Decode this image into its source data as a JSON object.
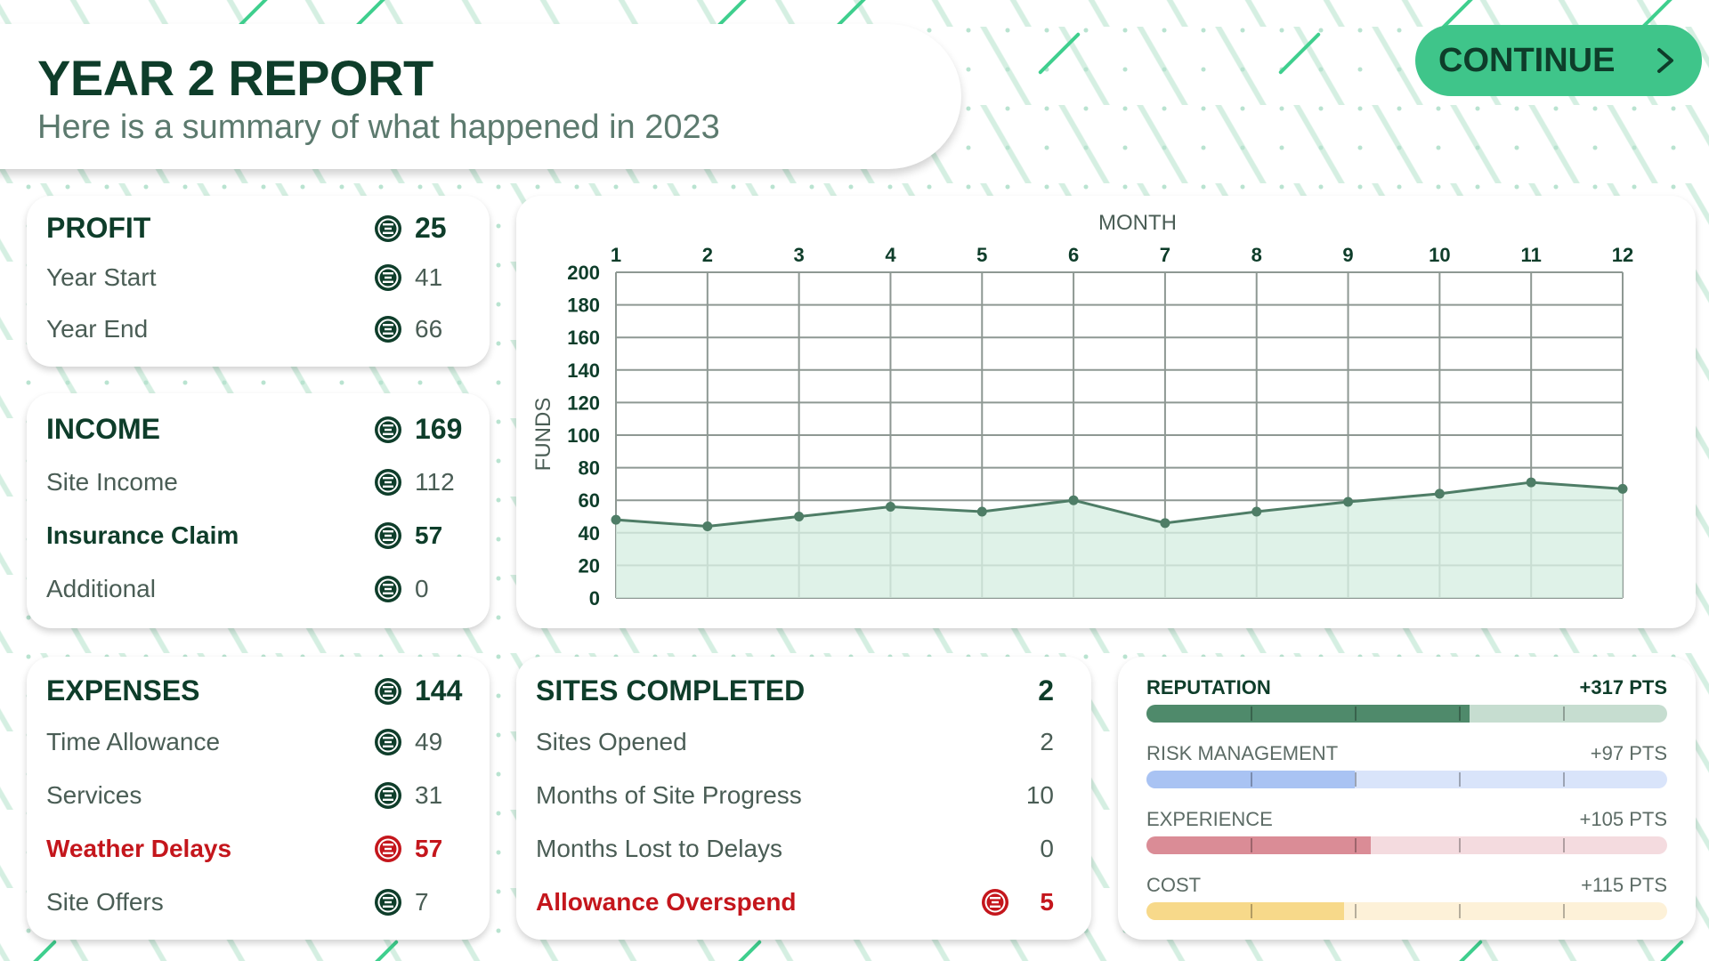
{
  "header": {
    "title": "YEAR 2 REPORT",
    "subtitle": "Here is a summary of what happened in 2023"
  },
  "continue_button": {
    "label": "CONTINUE",
    "icon": "chevron-right-icon"
  },
  "colors": {
    "accent_green": "#3fc58a",
    "dark_green": "#0e3d2a",
    "alert_red": "#c4161c",
    "coin_icon": "coin-icon"
  },
  "profit": {
    "title": "PROFIT",
    "total": "25",
    "rows": [
      {
        "label": "Year Start",
        "value": "41"
      },
      {
        "label": "Year End",
        "value": "66"
      }
    ]
  },
  "income": {
    "title": "INCOME",
    "total": "169",
    "rows": [
      {
        "label": "Site Income",
        "value": "112"
      },
      {
        "label": "Insurance Claim",
        "value": "57"
      },
      {
        "label": "Additional",
        "value": "0"
      }
    ]
  },
  "expenses": {
    "title": "EXPENSES",
    "total": "144",
    "rows": [
      {
        "label": "Time Allowance",
        "value": "49"
      },
      {
        "label": "Services",
        "value": "31"
      },
      {
        "label": "Weather Delays",
        "value": "57"
      },
      {
        "label": "Site Offers",
        "value": "7"
      }
    ]
  },
  "sites": {
    "title": "SITES COMPLETED",
    "total": "2",
    "rows": [
      {
        "label": "Sites Opened",
        "value": "2"
      },
      {
        "label": "Months of Site Progress",
        "value": "10"
      },
      {
        "label": "Months Lost to Delays",
        "value": "0"
      },
      {
        "label": "Allowance Overspend",
        "value": "5"
      }
    ]
  },
  "chart_data": {
    "type": "area",
    "title": "",
    "xlabel": "MONTH",
    "ylabel": "FUNDS",
    "x": [
      1,
      2,
      3,
      4,
      5,
      6,
      7,
      8,
      9,
      10,
      11,
      12
    ],
    "values": [
      48,
      44,
      50,
      56,
      53,
      60,
      46,
      53,
      59,
      64,
      71,
      67
    ],
    "ylim": [
      0,
      200
    ],
    "yticks": [
      0,
      20,
      40,
      60,
      80,
      100,
      120,
      140,
      160,
      180,
      200
    ],
    "grid": true,
    "x_axis_position": "top",
    "line_color": "#4e7d66",
    "fill_color": "#d7efe2"
  },
  "metrics": [
    {
      "label": "REPUTATION",
      "points": "+317 PTS",
      "fraction": 0.62,
      "fill": "#4f8a6b",
      "track": "#c6ddd0"
    },
    {
      "label": "RISK MANAGEMENT",
      "points": "+97 PTS",
      "fraction": 0.4,
      "fill": "#a9c3f3",
      "track": "#d9e4fa"
    },
    {
      "label": "EXPERIENCE",
      "points": "+105 PTS",
      "fraction": 0.43,
      "fill": "#da8c96",
      "track": "#f4dbdf"
    },
    {
      "label": "COST",
      "points": "+115 PTS",
      "fraction": 0.38,
      "fill": "#f7d98a",
      "track": "#fdf1d8"
    }
  ]
}
